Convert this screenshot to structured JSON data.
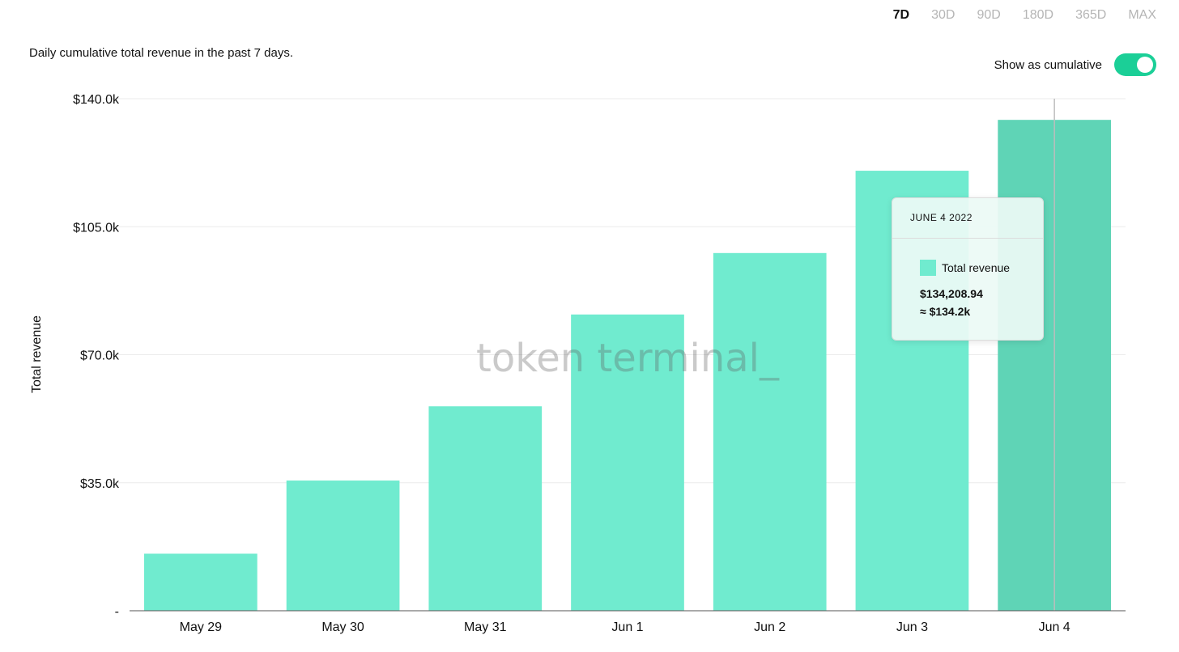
{
  "range_tabs": [
    "7D",
    "30D",
    "90D",
    "180D",
    "365D",
    "MAX"
  ],
  "subtitle": "Daily cumulative total revenue in the past 7 days.",
  "toggle": {
    "label": "Show as cumulative",
    "on": true
  },
  "watermark": "token terminal_",
  "tooltip": {
    "date": "JUNE 4 2022",
    "series": "Total revenue",
    "value": "$134,208.94",
    "approx": "≈ $134.2k"
  },
  "colors": {
    "bar": "#70ebcf",
    "bar_hover": "#5fd4b6",
    "accent": "#1bcf97"
  },
  "chart_data": {
    "type": "bar",
    "categories": [
      "May 29",
      "May 30",
      "May 31",
      "Jun 1",
      "Jun 2",
      "Jun 3",
      "Jun 4"
    ],
    "series": [
      {
        "name": "Total revenue",
        "values": [
          15600,
          35600,
          55900,
          81000,
          97800,
          120300,
          134208.94
        ]
      }
    ],
    "ylabel": "Total revenue",
    "ylim": [
      0,
      140000
    ],
    "yticks": [
      0,
      35000,
      70000,
      105000,
      140000
    ],
    "ytick_labels": [
      "-",
      "$35.0k",
      "$70.0k",
      "$105.0k",
      "$140.0k"
    ],
    "highlighted_category": "Jun 4",
    "grid": true
  }
}
